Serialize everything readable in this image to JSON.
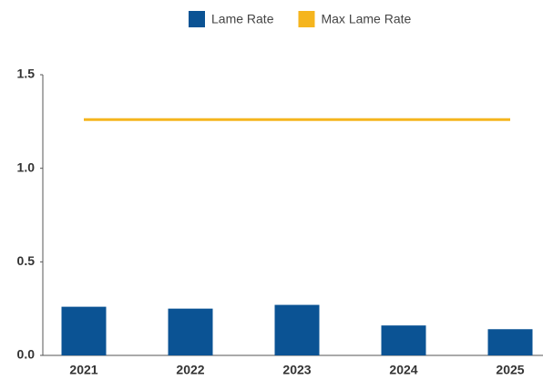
{
  "chart_data": {
    "type": "bar",
    "categories": [
      "2021",
      "2022",
      "2023",
      "2024",
      "2025"
    ],
    "series": [
      {
        "name": "Lame Rate",
        "type": "bar",
        "color": "#0b5394",
        "values": [
          0.26,
          0.25,
          0.27,
          0.16,
          0.14
        ]
      },
      {
        "name": "Max Lame Rate",
        "type": "line",
        "color": "#f5b51e",
        "values": [
          1.26,
          1.26,
          1.26,
          1.26,
          1.26
        ]
      }
    ],
    "ylim": [
      0,
      1.5
    ],
    "yticks": [
      {
        "value": 0,
        "label": "0.0"
      },
      0.5,
      {
        "value": 1,
        "label": "1.0"
      },
      1.5
    ],
    "legend": "top"
  }
}
